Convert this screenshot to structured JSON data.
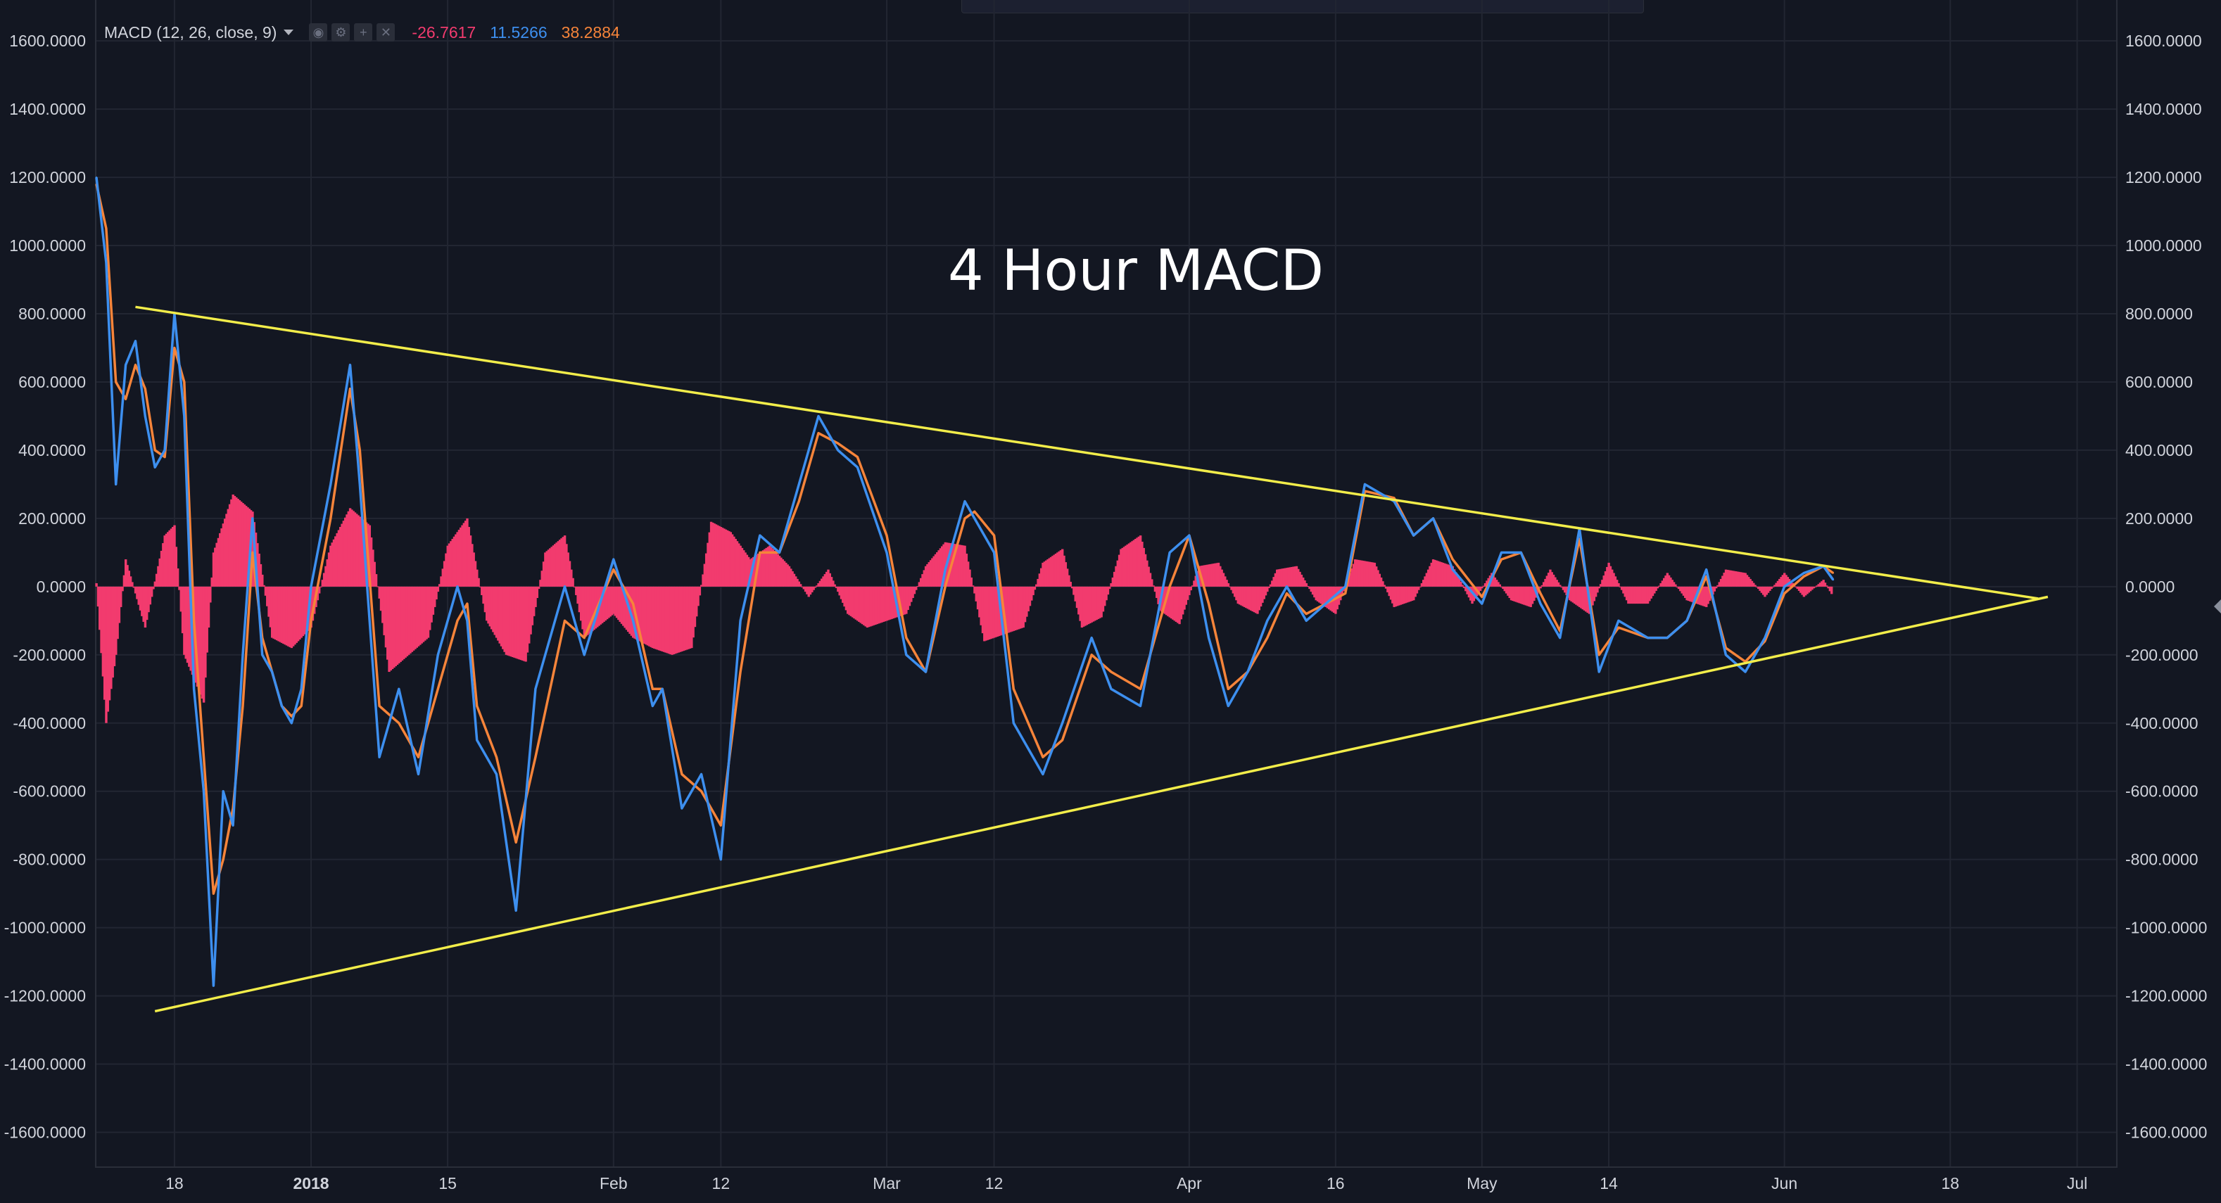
{
  "indicator": {
    "name": "MACD (12, 26, close, 9)",
    "values": [
      "-26.7617",
      "11.5266",
      "38.2884"
    ]
  },
  "colors": {
    "background": "#131722",
    "grid": "#222632",
    "macd_line": "#3d8fef",
    "signal_line": "#f6843a",
    "histogram": "#f23b6e",
    "trendline": "#f2ed4a",
    "title_text": "#ffffff"
  },
  "icons": [
    "eye-icon",
    "gear-icon",
    "plus-icon",
    "close-icon",
    "chevron-down-icon"
  ],
  "chart_data": {
    "type": "line",
    "title": "4 Hour MACD",
    "xlabel": "",
    "ylabel": "",
    "ylim": [
      -1700,
      1720
    ],
    "y_ticks": [
      "1600.0000",
      "1400.0000",
      "1200.0000",
      "1000.0000",
      "800.0000",
      "600.0000",
      "400.0000",
      "200.0000",
      "0.0000",
      "-200.0000",
      "-400.0000",
      "-600.0000",
      "-800.0000",
      "-1000.0000",
      "-1200.0000",
      "-1400.0000",
      "-1600.0000"
    ],
    "x_range": [
      "2017-12-10",
      "2018-07-05"
    ],
    "x_ticks": [
      {
        "label": "18",
        "date": "2017-12-18"
      },
      {
        "label": "2018",
        "date": "2018-01-01"
      },
      {
        "label": "15",
        "date": "2018-01-15"
      },
      {
        "label": "Feb",
        "date": "2018-02-01"
      },
      {
        "label": "12",
        "date": "2018-02-12"
      },
      {
        "label": "Mar",
        "date": "2018-03-01"
      },
      {
        "label": "12",
        "date": "2018-03-12"
      },
      {
        "label": "Apr",
        "date": "2018-04-01"
      },
      {
        "label": "16",
        "date": "2018-04-16"
      },
      {
        "label": "May",
        "date": "2018-05-01"
      },
      {
        "label": "14",
        "date": "2018-05-14"
      },
      {
        "label": "Jun",
        "date": "2018-06-01"
      },
      {
        "label": "18",
        "date": "2018-06-18"
      },
      {
        "label": "Jul",
        "date": "2018-07-01"
      }
    ],
    "series": [
      {
        "key": "macd",
        "x": [
          "2017-12-10",
          "2017-12-11",
          "2017-12-12",
          "2017-12-13",
          "2017-12-14",
          "2017-12-15",
          "2017-12-16",
          "2017-12-17",
          "2017-12-18",
          "2017-12-19",
          "2017-12-20",
          "2017-12-21",
          "2017-12-22",
          "2017-12-23",
          "2017-12-24",
          "2017-12-25",
          "2017-12-26",
          "2017-12-27",
          "2017-12-28",
          "2017-12-29",
          "2017-12-30",
          "2017-12-31",
          "2018-01-01",
          "2018-01-03",
          "2018-01-05",
          "2018-01-06",
          "2018-01-08",
          "2018-01-10",
          "2018-01-12",
          "2018-01-14",
          "2018-01-16",
          "2018-01-17",
          "2018-01-18",
          "2018-01-20",
          "2018-01-22",
          "2018-01-24",
          "2018-01-27",
          "2018-01-29",
          "2018-02-01",
          "2018-02-03",
          "2018-02-05",
          "2018-02-06",
          "2018-02-08",
          "2018-02-10",
          "2018-02-12",
          "2018-02-14",
          "2018-02-16",
          "2018-02-18",
          "2018-02-20",
          "2018-02-22",
          "2018-02-24",
          "2018-02-26",
          "2018-03-01",
          "2018-03-03",
          "2018-03-05",
          "2018-03-07",
          "2018-03-09",
          "2018-03-10",
          "2018-03-12",
          "2018-03-14",
          "2018-03-17",
          "2018-03-19",
          "2018-03-22",
          "2018-03-24",
          "2018-03-27",
          "2018-03-30",
          "2018-04-01",
          "2018-04-03",
          "2018-04-05",
          "2018-04-07",
          "2018-04-09",
          "2018-04-11",
          "2018-04-13",
          "2018-04-15",
          "2018-04-17",
          "2018-04-19",
          "2018-04-22",
          "2018-04-24",
          "2018-04-26",
          "2018-04-28",
          "2018-05-01",
          "2018-05-03",
          "2018-05-05",
          "2018-05-07",
          "2018-05-09",
          "2018-05-11",
          "2018-05-13",
          "2018-05-15",
          "2018-05-18",
          "2018-05-20",
          "2018-05-22",
          "2018-05-24",
          "2018-05-26",
          "2018-05-28",
          "2018-05-30",
          "2018-06-01",
          "2018-06-03",
          "2018-06-05",
          "2018-06-06"
        ],
        "values": [
          1200,
          950,
          300,
          650,
          720,
          500,
          350,
          400,
          800,
          500,
          -300,
          -600,
          -1170,
          -600,
          -700,
          -200,
          200,
          -200,
          -250,
          -350,
          -400,
          -300,
          0,
          300,
          650,
          300,
          -500,
          -300,
          -550,
          -200,
          0,
          -100,
          -450,
          -550,
          -950,
          -300,
          0,
          -200,
          80,
          -100,
          -350,
          -300,
          -650,
          -550,
          -800,
          -100,
          150,
          100,
          300,
          500,
          400,
          350,
          100,
          -200,
          -250,
          50,
          250,
          200,
          100,
          -400,
          -550,
          -400,
          -150,
          -300,
          -350,
          100,
          150,
          -150,
          -350,
          -250,
          -100,
          0,
          -100,
          -50,
          0,
          300,
          250,
          150,
          200,
          50,
          -50,
          100,
          100,
          -50,
          -150,
          170,
          -250,
          -100,
          -150,
          -150,
          -100,
          50,
          -200,
          -250,
          -150,
          0,
          40,
          60,
          20
        ]
      },
      {
        "key": "signal",
        "x": [
          "2017-12-10",
          "2017-12-11",
          "2017-12-12",
          "2017-12-13",
          "2017-12-14",
          "2017-12-15",
          "2017-12-16",
          "2017-12-17",
          "2017-12-18",
          "2017-12-19",
          "2017-12-20",
          "2017-12-21",
          "2017-12-22",
          "2017-12-23",
          "2017-12-24",
          "2017-12-25",
          "2017-12-26",
          "2017-12-27",
          "2017-12-28",
          "2017-12-29",
          "2017-12-30",
          "2017-12-31",
          "2018-01-01",
          "2018-01-03",
          "2018-01-05",
          "2018-01-06",
          "2018-01-08",
          "2018-01-10",
          "2018-01-12",
          "2018-01-14",
          "2018-01-16",
          "2018-01-17",
          "2018-01-18",
          "2018-01-20",
          "2018-01-22",
          "2018-01-24",
          "2018-01-27",
          "2018-01-29",
          "2018-02-01",
          "2018-02-03",
          "2018-02-05",
          "2018-02-06",
          "2018-02-08",
          "2018-02-10",
          "2018-02-12",
          "2018-02-14",
          "2018-02-16",
          "2018-02-18",
          "2018-02-20",
          "2018-02-22",
          "2018-02-24",
          "2018-02-26",
          "2018-03-01",
          "2018-03-03",
          "2018-03-05",
          "2018-03-07",
          "2018-03-09",
          "2018-03-10",
          "2018-03-12",
          "2018-03-14",
          "2018-03-17",
          "2018-03-19",
          "2018-03-22",
          "2018-03-24",
          "2018-03-27",
          "2018-03-30",
          "2018-04-01",
          "2018-04-03",
          "2018-04-05",
          "2018-04-07",
          "2018-04-09",
          "2018-04-11",
          "2018-04-13",
          "2018-04-15",
          "2018-04-17",
          "2018-04-19",
          "2018-04-22",
          "2018-04-24",
          "2018-04-26",
          "2018-04-28",
          "2018-05-01",
          "2018-05-03",
          "2018-05-05",
          "2018-05-07",
          "2018-05-09",
          "2018-05-11",
          "2018-05-13",
          "2018-05-15",
          "2018-05-18",
          "2018-05-20",
          "2018-05-22",
          "2018-05-24",
          "2018-05-26",
          "2018-05-28",
          "2018-05-30",
          "2018-06-01",
          "2018-06-03",
          "2018-06-05",
          "2018-06-06"
        ],
        "values": [
          1180,
          1050,
          600,
          550,
          650,
          580,
          400,
          380,
          700,
          600,
          -100,
          -500,
          -900,
          -800,
          -650,
          -350,
          100,
          -150,
          -250,
          -350,
          -380,
          -350,
          -100,
          200,
          580,
          400,
          -350,
          -400,
          -500,
          -300,
          -100,
          -50,
          -350,
          -500,
          -750,
          -500,
          -100,
          -150,
          50,
          -50,
          -300,
          -300,
          -550,
          -600,
          -700,
          -250,
          100,
          100,
          250,
          450,
          420,
          380,
          150,
          -150,
          -250,
          0,
          200,
          220,
          150,
          -300,
          -500,
          -450,
          -200,
          -250,
          -300,
          0,
          150,
          -50,
          -300,
          -250,
          -150,
          -20,
          -80,
          -50,
          -20,
          280,
          260,
          150,
          200,
          80,
          -30,
          80,
          100,
          -20,
          -130,
          140,
          -200,
          -120,
          -150,
          -150,
          -100,
          30,
          -180,
          -220,
          -160,
          -20,
          30,
          60,
          40
        ]
      },
      {
        "key": "histogram",
        "x": [
          "2017-12-10",
          "2017-12-11",
          "2017-12-12",
          "2017-12-13",
          "2017-12-15",
          "2017-12-17",
          "2017-12-18",
          "2017-12-19",
          "2017-12-21",
          "2017-12-22",
          "2017-12-24",
          "2017-12-26",
          "2017-12-28",
          "2017-12-30",
          "2018-01-01",
          "2018-01-03",
          "2018-01-05",
          "2018-01-07",
          "2018-01-09",
          "2018-01-11",
          "2018-01-13",
          "2018-01-15",
          "2018-01-17",
          "2018-01-19",
          "2018-01-21",
          "2018-01-23",
          "2018-01-25",
          "2018-01-27",
          "2018-01-29",
          "2018-02-01",
          "2018-02-03",
          "2018-02-05",
          "2018-02-07",
          "2018-02-09",
          "2018-02-11",
          "2018-02-13",
          "2018-02-15",
          "2018-02-17",
          "2018-02-19",
          "2018-02-21",
          "2018-02-23",
          "2018-02-25",
          "2018-02-27",
          "2018-03-01",
          "2018-03-03",
          "2018-03-05",
          "2018-03-07",
          "2018-03-09",
          "2018-03-11",
          "2018-03-13",
          "2018-03-15",
          "2018-03-17",
          "2018-03-19",
          "2018-03-21",
          "2018-03-23",
          "2018-03-25",
          "2018-03-27",
          "2018-03-29",
          "2018-03-31",
          "2018-04-02",
          "2018-04-04",
          "2018-04-06",
          "2018-04-08",
          "2018-04-10",
          "2018-04-12",
          "2018-04-14",
          "2018-04-16",
          "2018-04-18",
          "2018-04-20",
          "2018-04-22",
          "2018-04-24",
          "2018-04-26",
          "2018-04-28",
          "2018-04-30",
          "2018-05-02",
          "2018-05-04",
          "2018-05-06",
          "2018-05-08",
          "2018-05-10",
          "2018-05-12",
          "2018-05-14",
          "2018-05-16",
          "2018-05-18",
          "2018-05-20",
          "2018-05-22",
          "2018-05-24",
          "2018-05-26",
          "2018-05-28",
          "2018-05-30",
          "2018-06-01",
          "2018-06-03",
          "2018-06-05",
          "2018-06-06"
        ],
        "values": [
          10,
          -400,
          -200,
          80,
          -120,
          150,
          180,
          -200,
          -340,
          100,
          270,
          220,
          -150,
          -180,
          -120,
          120,
          230,
          180,
          -250,
          -200,
          -150,
          120,
          200,
          -100,
          -200,
          -220,
          100,
          150,
          -150,
          -80,
          -150,
          -180,
          -200,
          -180,
          190,
          160,
          80,
          120,
          60,
          -30,
          50,
          -80,
          -120,
          -100,
          -80,
          60,
          130,
          120,
          -160,
          -140,
          -120,
          70,
          110,
          -120,
          -90,
          110,
          150,
          -70,
          -110,
          60,
          70,
          -50,
          -80,
          50,
          60,
          -40,
          -80,
          80,
          70,
          -60,
          -40,
          80,
          60,
          -50,
          40,
          -40,
          -60,
          50,
          -40,
          -80,
          70,
          -50,
          -50,
          40,
          -40,
          -60,
          50,
          40,
          -30,
          40,
          -30,
          20,
          -30
        ]
      }
    ],
    "trendlines": [
      {
        "from": {
          "x": "2017-12-14",
          "y": 820
        },
        "to": {
          "x": "2018-06-27",
          "y": -35
        }
      },
      {
        "from": {
          "x": "2017-12-16",
          "y": -1245
        },
        "to": {
          "x": "2018-06-28",
          "y": -30
        }
      }
    ]
  }
}
